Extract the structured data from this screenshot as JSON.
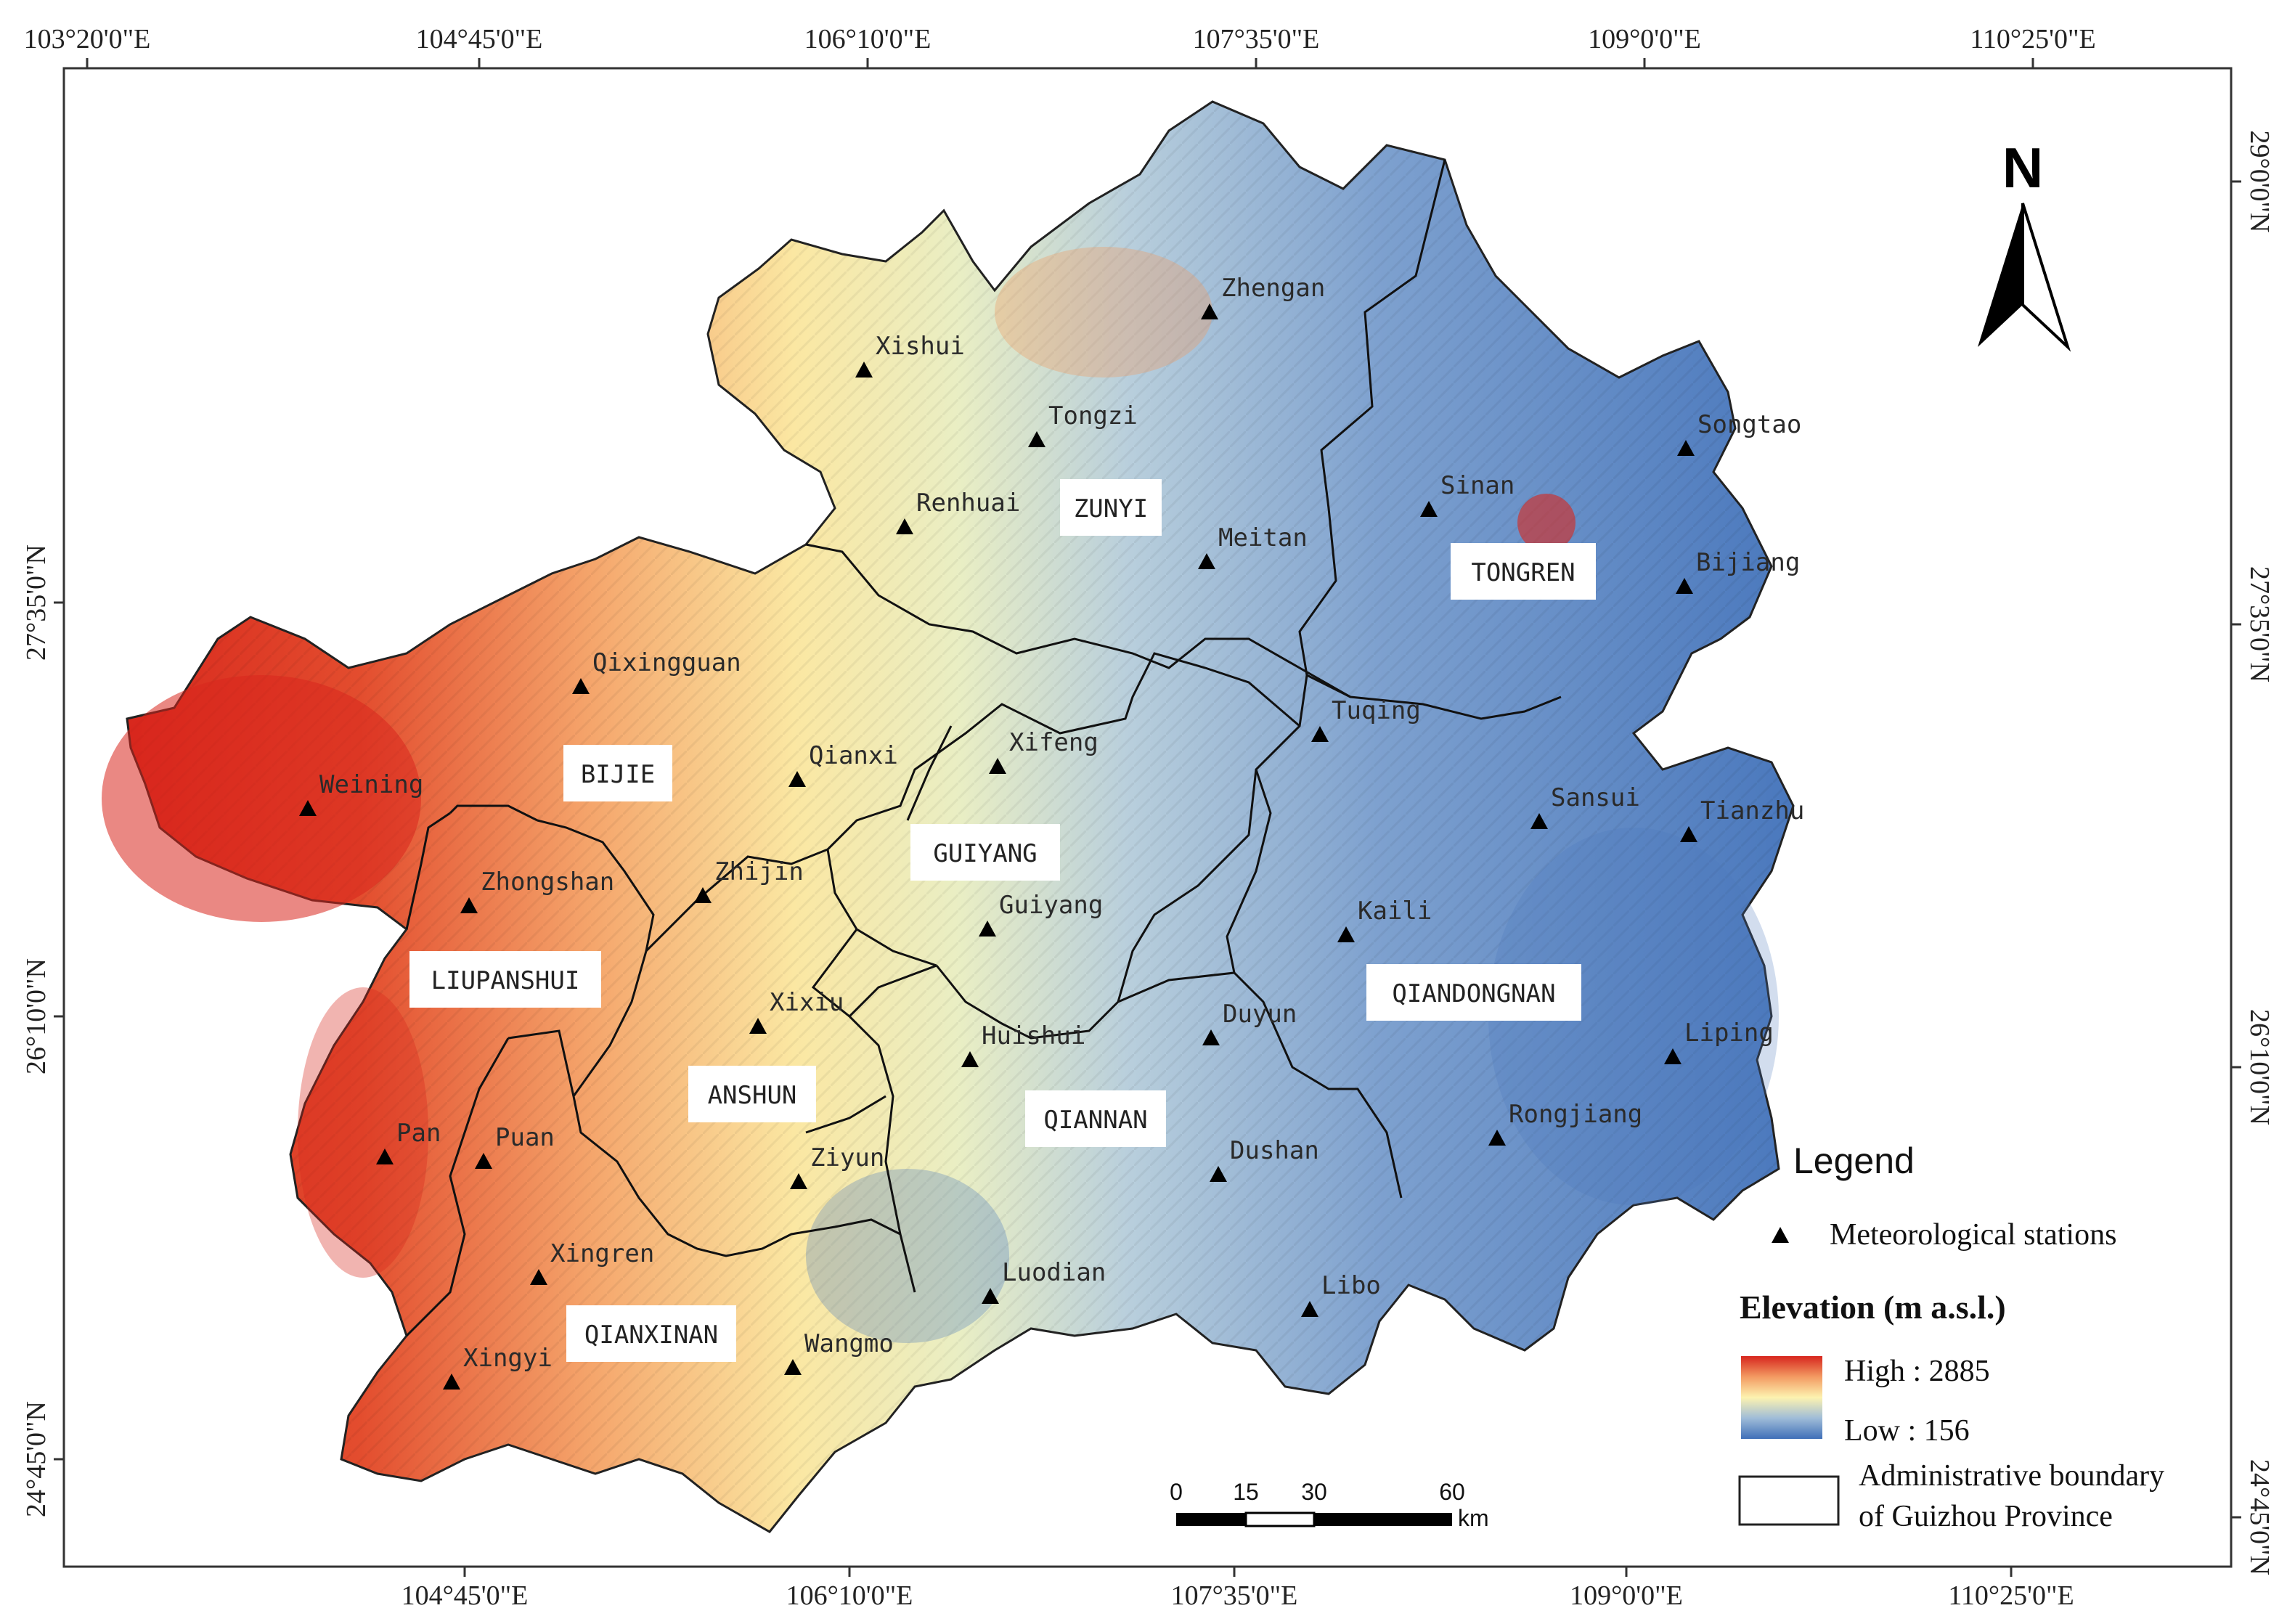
{
  "map": {
    "top_ticks": [
      "103°20'0\"E",
      "104°45'0\"E",
      "106°10'0\"E",
      "107°35'0\"E",
      "109°0'0\"E",
      "110°25'0\"E"
    ],
    "bottom_ticks": [
      "104°45'0\"E",
      "106°10'0\"E",
      "107°35'0\"E",
      "109°0'0\"E",
      "110°25'0\"E"
    ],
    "left_ticks": [
      "27°35'0\"N",
      "26°10'0\"N",
      "24°45'0\"N"
    ],
    "right_ticks": [
      "29°0'0\"N",
      "27°35'0\"N",
      "26°10'0\"N",
      "24°45'0\"N"
    ]
  },
  "regions": [
    "ZUNYI",
    "TONGREN",
    "BIJIE",
    "GUIYANG",
    "LIUPANSHUI",
    "ANSHUN",
    "QIANDONGNAN",
    "QIANNAN",
    "QIANXINAN"
  ],
  "stations": [
    "Zhengan",
    "Xishui",
    "Tongzi",
    "Songtao",
    "Sinan",
    "Renhuai",
    "Meitan",
    "Bijiang",
    "Qixingguan",
    "Tuqing",
    "Xifeng",
    "Weining",
    "Qianxi",
    "Sansui",
    "Tianzhu",
    "Zhijin",
    "Zhongshan",
    "Guiyang",
    "Kaili",
    "Xixiu",
    "Duyun",
    "Huishui",
    "Liping",
    "Pan",
    "Puan",
    "Rongjiang",
    "Ziyun",
    "Dushan",
    "Xingren",
    "Luodian",
    "Libo",
    "Xingyi",
    "Wangmo"
  ],
  "north": {
    "label": "N"
  },
  "scale": {
    "ticks": [
      "0",
      "15",
      "30",
      "60"
    ],
    "unit": "km"
  },
  "legend": {
    "title": "Legend",
    "station_label": "Meteorological stations",
    "elevation_title": "Elevation (m a.s.l.)",
    "high_label": "High : 2885",
    "low_label": "Low : 156",
    "boundary_line1": "Administrative boundary",
    "boundary_line2": "of Guizhou Province",
    "colors": {
      "high": "#d7261e",
      "mid": "#fdf3b0",
      "low": "#3f6fb8"
    }
  }
}
